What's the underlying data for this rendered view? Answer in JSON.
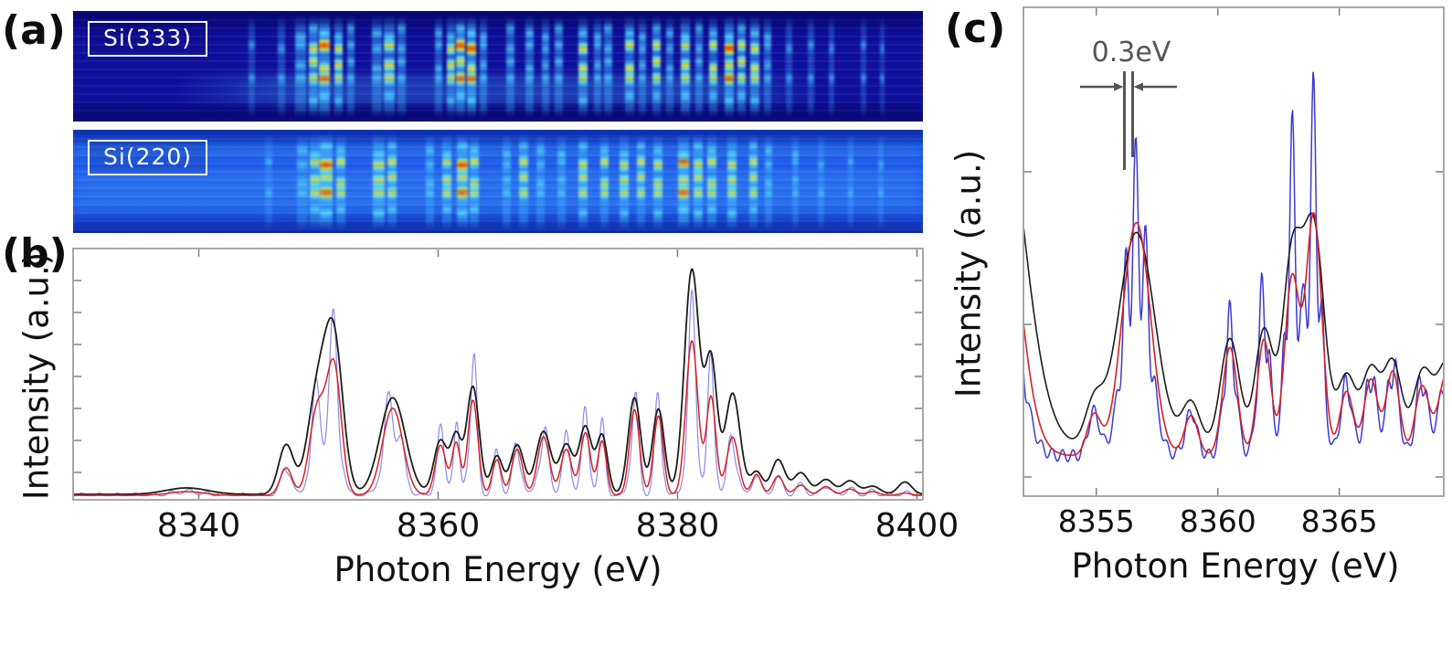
{
  "figure": {
    "background": "#ffffff",
    "panels": {
      "a": {
        "label": "(a)",
        "strips": [
          {
            "name": "Si(333)",
            "colormap": "jet",
            "background": "#0c0c98",
            "features": [
              [
                0.21,
                7,
                0.2
              ],
              [
                0.245,
                8,
                0.3
              ],
              [
                0.268,
                12,
                0.55
              ],
              [
                0.283,
                10,
                0.8
              ],
              [
                0.296,
                12,
                1.0
              ],
              [
                0.312,
                9,
                0.65
              ],
              [
                0.327,
                8,
                0.45
              ],
              [
                0.358,
                11,
                0.5
              ],
              [
                0.372,
                12,
                0.75
              ],
              [
                0.387,
                9,
                0.5
              ],
              [
                0.43,
                8,
                0.45
              ],
              [
                0.445,
                9,
                0.6
              ],
              [
                0.456,
                10,
                0.95
              ],
              [
                0.469,
                10,
                1.0
              ],
              [
                0.483,
                8,
                0.55
              ],
              [
                0.515,
                9,
                0.5
              ],
              [
                0.537,
                9,
                0.55
              ],
              [
                0.556,
                8,
                0.45
              ],
              [
                0.572,
                9,
                0.5
              ],
              [
                0.6,
                10,
                0.65
              ],
              [
                0.617,
                8,
                0.5
              ],
              [
                0.63,
                9,
                0.55
              ],
              [
                0.655,
                10,
                0.7
              ],
              [
                0.67,
                8,
                0.5
              ],
              [
                0.687,
                9,
                0.6
              ],
              [
                0.702,
                8,
                0.45
              ],
              [
                0.72,
                10,
                0.85
              ],
              [
                0.737,
                8,
                0.55
              ],
              [
                0.753,
                9,
                0.6
              ],
              [
                0.772,
                10,
                0.95
              ],
              [
                0.787,
                9,
                0.7
              ],
              [
                0.802,
                10,
                0.75
              ],
              [
                0.817,
                8,
                0.5
              ],
              [
                0.842,
                7,
                0.3
              ],
              [
                0.868,
                7,
                0.3
              ],
              [
                0.893,
                6,
                0.25
              ],
              [
                0.93,
                6,
                0.2
              ],
              [
                0.952,
                5,
                0.15
              ]
            ]
          },
          {
            "name": "Si(220)",
            "colormap": "jet",
            "background": "#1a4ae0",
            "features": [
              [
                0.23,
                8,
                0.2
              ],
              [
                0.27,
                12,
                0.45
              ],
              [
                0.285,
                12,
                0.7
              ],
              [
                0.298,
                14,
                1.0
              ],
              [
                0.315,
                10,
                0.6
              ],
              [
                0.36,
                13,
                0.85
              ],
              [
                0.375,
                10,
                0.6
              ],
              [
                0.42,
                9,
                0.5
              ],
              [
                0.44,
                10,
                0.6
              ],
              [
                0.458,
                12,
                0.9
              ],
              [
                0.472,
                10,
                0.7
              ],
              [
                0.51,
                9,
                0.5
              ],
              [
                0.53,
                10,
                0.55
              ],
              [
                0.55,
                9,
                0.5
              ],
              [
                0.575,
                9,
                0.45
              ],
              [
                0.6,
                10,
                0.6
              ],
              [
                0.625,
                9,
                0.55
              ],
              [
                0.648,
                10,
                0.6
              ],
              [
                0.668,
                9,
                0.55
              ],
              [
                0.688,
                10,
                0.6
              ],
              [
                0.718,
                12,
                1.0
              ],
              [
                0.735,
                10,
                0.8
              ],
              [
                0.752,
                10,
                0.75
              ],
              [
                0.775,
                10,
                0.8
              ],
              [
                0.8,
                9,
                0.6
              ],
              [
                0.818,
                8,
                0.5
              ],
              [
                0.85,
                7,
                0.35
              ],
              [
                0.88,
                7,
                0.3
              ],
              [
                0.915,
                6,
                0.25
              ],
              [
                0.95,
                6,
                0.2
              ]
            ]
          }
        ]
      },
      "b": {
        "label": "(b)"
      },
      "c": {
        "label": "(c)"
      }
    }
  },
  "chart_data": [
    {
      "id": "b",
      "type": "line",
      "title": "",
      "xlabel": "Photon Energy (eV)",
      "ylabel": "Intensity (a.u.)",
      "xlim": [
        8329.5,
        8400.5
      ],
      "ylim": [
        0,
        1.1
      ],
      "xticks": [
        8340,
        8360,
        8380,
        8400
      ],
      "grid": false,
      "legend": "none",
      "baseline": 0.004,
      "series": [
        {
          "name": "black",
          "color": "#1c1c1c"
        },
        {
          "name": "red",
          "color": "#d62020"
        },
        {
          "name": "blue",
          "color": "#8a8aec"
        }
      ],
      "peaks": [
        [
          8339.0,
          0.022,
          1.4,
          1.3,
          0.8,
          0.8
        ],
        [
          8347.3,
          0.22,
          0.5,
          1,
          0.6,
          0.62
        ],
        [
          8349.9,
          0.44,
          0.65,
          1,
          0.93,
          0.9
        ],
        [
          8351.3,
          0.66,
          0.6,
          1,
          0.92,
          0.9
        ],
        [
          8356.2,
          0.43,
          0.85,
          1,
          0.97,
          0.95
        ],
        [
          8360.2,
          0.24,
          0.45,
          1,
          1,
          1
        ],
        [
          8361.5,
          0.25,
          0.35,
          1,
          1,
          1.05
        ],
        [
          8362.9,
          0.48,
          0.42,
          1,
          0.95,
          1.1
        ],
        [
          8364.9,
          0.17,
          0.38,
          1,
          1,
          1
        ],
        [
          8366.6,
          0.22,
          0.45,
          1,
          1,
          1
        ],
        [
          8368.8,
          0.28,
          0.5,
          1,
          1,
          1
        ],
        [
          8370.7,
          0.22,
          0.45,
          1,
          1,
          1
        ],
        [
          8372.3,
          0.3,
          0.42,
          1,
          1,
          1
        ],
        [
          8373.7,
          0.26,
          0.36,
          1,
          1,
          1
        ],
        [
          8376.4,
          0.41,
          0.42,
          1.05,
          1,
          0.95
        ],
        [
          8378.4,
          0.38,
          0.4,
          1,
          1,
          0.95
        ],
        [
          8381.2,
          1.0,
          0.5,
          1,
          0.74,
          0.66
        ],
        [
          8382.8,
          0.59,
          0.4,
          1,
          0.8,
          0.8
        ],
        [
          8384.6,
          0.45,
          0.5,
          1,
          0.62,
          0.55
        ],
        [
          8386.6,
          0.1,
          0.4,
          1,
          1,
          1
        ],
        [
          8388.4,
          0.14,
          0.45,
          1.1,
          0.65,
          0.6
        ],
        [
          8390.3,
          0.08,
          0.5,
          1.2,
          0.6,
          0.6
        ],
        [
          8392.4,
          0.06,
          0.5,
          1.1,
          0.7,
          0.7
        ],
        [
          8394.4,
          0.05,
          0.5,
          1.2,
          0.6,
          0.6
        ],
        [
          8396.3,
          0.03,
          0.5,
          1.2,
          0.6,
          0.6
        ],
        [
          8399.0,
          0.055,
          0.45,
          1,
          0.2,
          0.2
        ]
      ],
      "blue_modulation": {
        "anchor_eV": 8381.2,
        "period_eV": 1.5
      }
    },
    {
      "id": "c",
      "type": "line",
      "title": "",
      "xlabel": "Photon Energy (eV)",
      "ylabel": "Intensity (a.u.)",
      "xlim": [
        8352.0,
        8369.3
      ],
      "ylim": [
        0,
        1.1
      ],
      "xticks": [
        8355,
        8360,
        8365
      ],
      "grid": false,
      "legend": "none",
      "baseline": 0.055,
      "series": [
        {
          "name": "black",
          "color": "#1c1c1c"
        },
        {
          "name": "red",
          "color": "#d62020"
        },
        {
          "name": "blue",
          "color": "#3b3bd0"
        }
      ],
      "peaks": [
        [
          8350.8,
          0.9,
          0.85,
          1.1,
          1,
          0.98
        ],
        [
          8354.9,
          0.1,
          0.28,
          1,
          1,
          1.1
        ],
        [
          8356.65,
          0.58,
          0.58,
          0.92,
          1,
          1.0
        ],
        [
          8358.9,
          0.1,
          0.28,
          1.1,
          1,
          1.1
        ],
        [
          8360.5,
          0.27,
          0.3,
          1,
          1,
          1.1
        ],
        [
          8361.9,
          0.29,
          0.28,
          1,
          1,
          1.3
        ],
        [
          8363.05,
          0.46,
          0.3,
          1,
          0.95,
          1.35
        ],
        [
          8363.95,
          0.6,
          0.33,
          0.9,
          1,
          1.15
        ],
        [
          8365.3,
          0.16,
          0.28,
          1.1,
          1,
          1.1
        ],
        [
          8366.3,
          0.19,
          0.28,
          1,
          1,
          1.1
        ],
        [
          8367.2,
          0.21,
          0.28,
          1,
          1,
          1.1
        ],
        [
          8368.4,
          0.17,
          0.28,
          1,
          1,
          1.15
        ],
        [
          8369.5,
          0.22,
          0.4,
          1,
          1,
          1.1
        ]
      ],
      "blue_modulation": {
        "anchor_eV": 8356.62,
        "period_eV": 0.43
      },
      "annotations": [
        {
          "text": "0.3eV",
          "meaning": "peak position shift between curves"
        }
      ]
    }
  ]
}
